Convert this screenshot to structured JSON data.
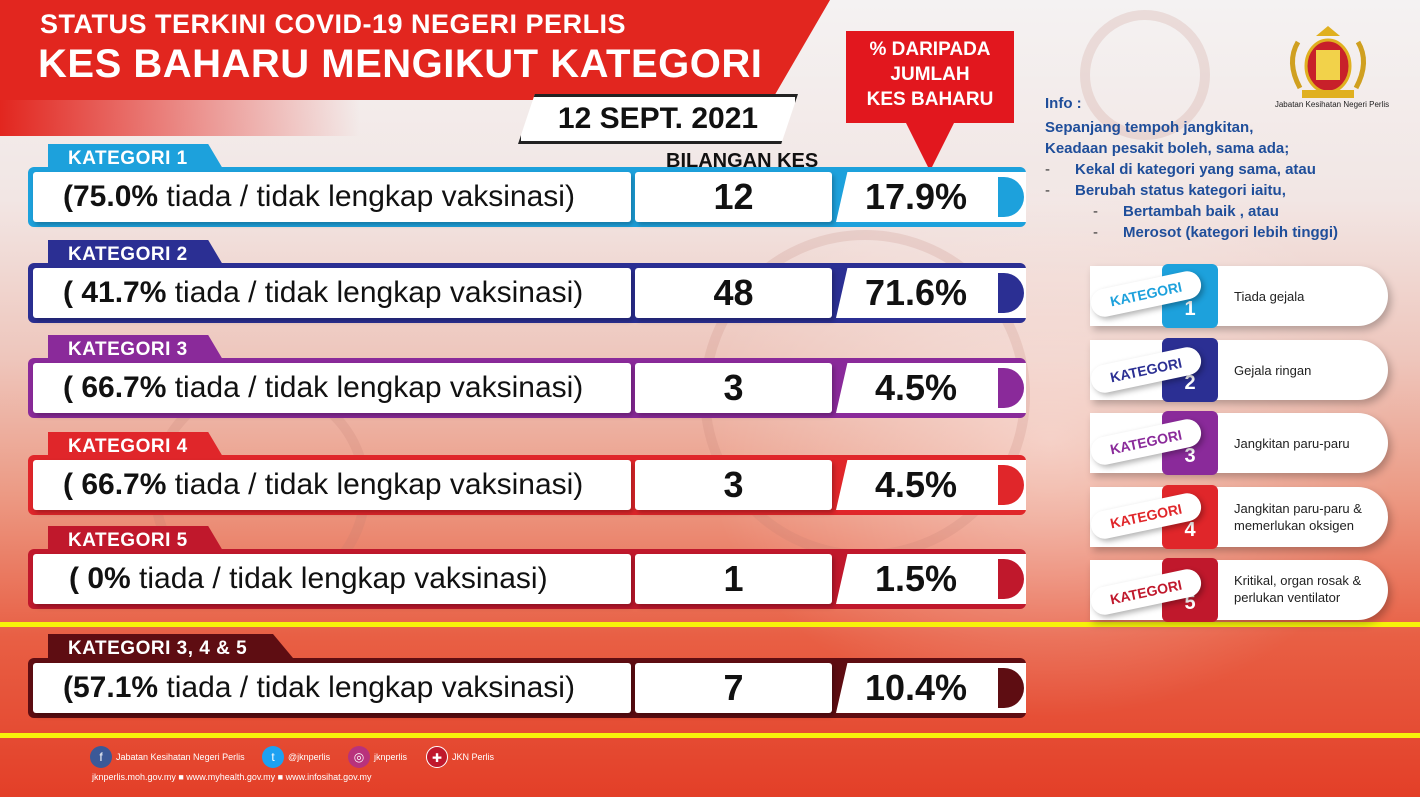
{
  "header": {
    "title_line1": "STATUS TERKINI COVID-19 NEGERI PERLIS",
    "title_line2": "KES BAHARU MENGIKUT KATEGORI",
    "date": "12 SEPT. 2021"
  },
  "callout": {
    "line1": "% DARIPADA",
    "line2": "JUMLAH",
    "line3": "KES BAHARU"
  },
  "column_label": "BILANGAN KES",
  "categories": [
    {
      "label": "KATEGORI 1",
      "vacc_pct": "(75.0%",
      "desc": " tiada / tidak lengkap vaksinasi)",
      "count": "12",
      "percent": "17.9%",
      "color": "#1da1dc"
    },
    {
      "label": "KATEGORI 2",
      "vacc_pct": "( 41.7%",
      "desc": " tiada / tidak lengkap vaksinasi)",
      "count": "48",
      "percent": "71.6%",
      "color": "#2b2f93"
    },
    {
      "label": "KATEGORI 3",
      "vacc_pct": "( 66.7%",
      "desc": " tiada / tidak lengkap vaksinasi)",
      "count": "3",
      "percent": "4.5%",
      "color": "#8a2a9a"
    },
    {
      "label": "KATEGORI 4",
      "vacc_pct": "( 66.7%",
      "desc": " tiada / tidak lengkap vaksinasi)",
      "count": "3",
      "percent": "4.5%",
      "color": "#e0262a"
    },
    {
      "label": "KATEGORI 5",
      "vacc_pct": "( 0%",
      "desc": " tiada / tidak lengkap vaksinasi)",
      "count": "1",
      "percent": "1.5%",
      "color": "#c0182c"
    },
    {
      "label": "KATEGORI 3, 4 & 5",
      "vacc_pct": "(57.1%",
      "desc": " tiada / tidak lengkap vaksinasi)",
      "count": "7",
      "percent": "10.4%",
      "color": "#5e0d12"
    }
  ],
  "info": {
    "title": "Info :",
    "line1": "Sepanjang tempoh jangkitan,",
    "line2": "Keadaan pesakit boleh, sama ada;",
    "item1": "Kekal di kategori yang sama, atau",
    "item2": "Berubah status kategori iaitu,",
    "sub1": "Bertambah baik , atau",
    "sub2": "Merosot (kategori lebih tinggi)"
  },
  "legend": [
    {
      "tag": "KATEGORI",
      "num": "1",
      "text1": "Tiada gejala",
      "text2": "",
      "color": "#1da1dc"
    },
    {
      "tag": "KATEGORI",
      "num": "2",
      "text1": "Gejala ringan",
      "text2": "",
      "color": "#2b2f93"
    },
    {
      "tag": "KATEGORI",
      "num": "3",
      "text1": "Jangkitan paru-paru",
      "text2": "",
      "color": "#8a2a9a"
    },
    {
      "tag": "KATEGORI",
      "num": "4",
      "text1": "Jangkitan paru-paru &",
      "text2": "memerlukan oksigen",
      "color": "#e0262a"
    },
    {
      "tag": "KATEGORI",
      "num": "5",
      "text1": "Kritikal, organ rosak &",
      "text2": "perlukan ventilator",
      "color": "#c0182c"
    }
  ],
  "crest_caption": "Jabatan Kesihatan Negeri Perlis",
  "footer": {
    "facebook": "Jabatan Kesihatan Negeri Perlis",
    "twitter": "@jknperlis",
    "instagram": "jknperlis",
    "other": "JKN Perlis",
    "links": "jknperlis.moh.gov.my ■ www.myhealth.gov.my ■ www.infosihat.gov.my"
  }
}
